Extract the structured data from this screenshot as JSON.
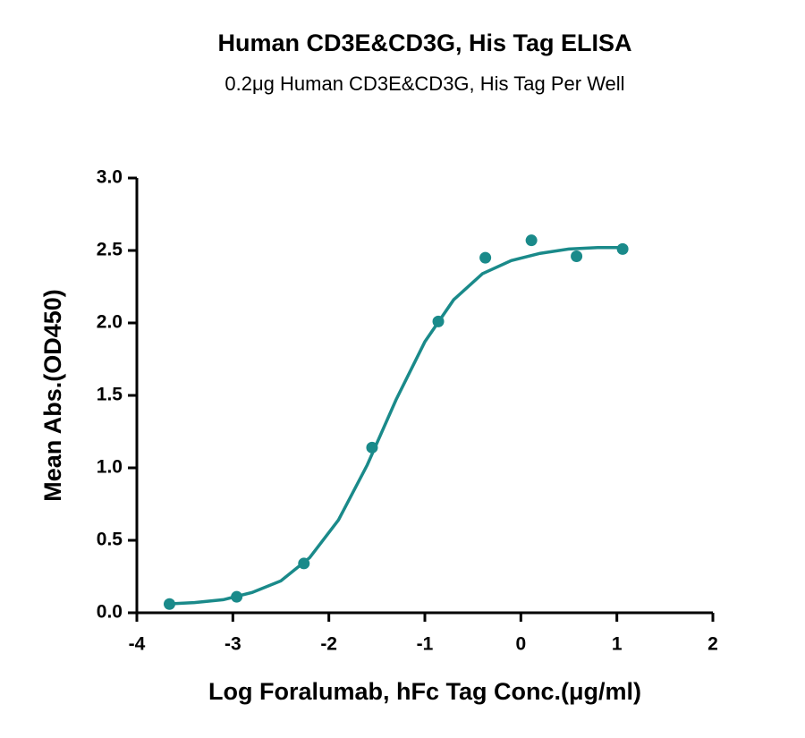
{
  "chart_data": {
    "type": "scatter",
    "title": "Human CD3E&CD3G, His Tag ELISA",
    "subtitle": "0.2μg Human CD3E&CD3G, His Tag Per Well",
    "x_label": "Log Foralumab, hFc Tag Conc.(μg/ml)",
    "y_label": "Mean Abs.(OD450)",
    "xlim": [
      -4,
      2
    ],
    "xticks": [
      -4,
      -3,
      -2,
      -1,
      0,
      1,
      2
    ],
    "ylim": [
      0,
      3
    ],
    "yticks": [
      {
        "value": 0,
        "label": "0.0"
      },
      0.5,
      {
        "value": 1,
        "label": "1.0"
      },
      1.5,
      {
        "value": 2,
        "label": "2.0"
      },
      2.5,
      {
        "value": 3,
        "label": "3.0"
      }
    ],
    "series": [
      {
        "type": "scatter",
        "color": "#1a8a8a",
        "x": [
          -3.66,
          -2.96,
          -2.26,
          -1.55,
          -0.86,
          -0.37,
          0.11,
          0.58,
          1.06
        ],
        "values": [
          0.06,
          0.11,
          0.34,
          1.14,
          2.01,
          2.45,
          2.57,
          2.46,
          2.51
        ]
      },
      {
        "type": "line",
        "color": "#1a8a8a",
        "x": [
          -3.7,
          -3.4,
          -3.1,
          -2.8,
          -2.5,
          -2.2,
          -1.9,
          -1.6,
          -1.3,
          -1.0,
          -0.7,
          -0.4,
          -0.1,
          0.2,
          0.5,
          0.8,
          1.05
        ],
        "values": [
          0.06,
          0.07,
          0.09,
          0.14,
          0.22,
          0.38,
          0.64,
          1.02,
          1.47,
          1.87,
          2.16,
          2.34,
          2.43,
          2.48,
          2.51,
          2.52,
          2.52
        ]
      }
    ]
  }
}
